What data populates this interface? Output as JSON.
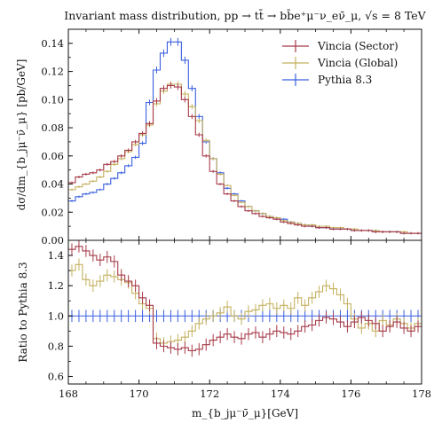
{
  "chart_data": [
    {
      "type": "line",
      "title": "Invariant mass distribution, pp → tt̄ → bb̄e⁺μ⁻ν_eν̄_μ, √s = 8 TeV",
      "xlabel": "",
      "ylabel": "dσ/dm_{b_jμ⁻ν̄_μ}  [pb/GeV]",
      "xlim": [
        168,
        178
      ],
      "ylim": [
        0,
        0.15
      ],
      "xticks": [
        "168",
        "170",
        "172",
        "174",
        "176",
        "178"
      ],
      "yticks": [
        "0.00",
        "0.02",
        "0.04",
        "0.06",
        "0.08",
        "0.10",
        "0.12",
        "0.14"
      ],
      "grid": false,
      "legend_position": "top-right",
      "bin_edges": [
        168.0,
        168.2,
        168.4,
        168.6,
        168.8,
        169.0,
        169.2,
        169.4,
        169.6,
        169.8,
        170.0,
        170.2,
        170.4,
        170.6,
        170.8,
        171.0,
        171.2,
        171.4,
        171.6,
        171.8,
        172.0,
        172.2,
        172.4,
        172.6,
        172.8,
        173.0,
        173.2,
        173.4,
        173.6,
        173.8,
        174.0,
        174.2,
        174.4,
        174.6,
        174.8,
        175.0,
        175.2,
        175.4,
        175.6,
        175.8,
        176.0,
        176.2,
        176.4,
        176.6,
        176.8,
        177.0,
        177.2,
        177.4,
        177.6,
        177.8,
        178.0
      ],
      "series": [
        {
          "name": "Vincia (Sector)",
          "color": "#a63a48",
          "values": [
            0.041,
            0.045,
            0.047,
            0.048,
            0.05,
            0.054,
            0.056,
            0.06,
            0.064,
            0.07,
            0.076,
            0.083,
            0.099,
            0.108,
            0.11,
            0.109,
            0.1,
            0.088,
            0.075,
            0.06,
            0.049,
            0.04,
            0.033,
            0.028,
            0.024,
            0.021,
            0.019,
            0.017,
            0.016,
            0.015,
            0.013,
            0.012,
            0.011,
            0.01,
            0.01,
            0.009,
            0.009,
            0.008,
            0.008,
            0.008,
            0.007,
            0.007,
            0.007,
            0.006,
            0.006,
            0.006,
            0.006,
            0.005,
            0.005,
            0.005
          ]
        },
        {
          "name": "Vincia (Global)",
          "color": "#c4b05e",
          "values": [
            0.036,
            0.038,
            0.04,
            0.042,
            0.045,
            0.049,
            0.054,
            0.058,
            0.063,
            0.068,
            0.075,
            0.082,
            0.097,
            0.106,
            0.111,
            0.111,
            0.104,
            0.095,
            0.085,
            0.071,
            0.058,
            0.047,
            0.039,
            0.032,
            0.027,
            0.024,
            0.021,
            0.019,
            0.017,
            0.016,
            0.014,
            0.013,
            0.012,
            0.011,
            0.011,
            0.01,
            0.01,
            0.009,
            0.009,
            0.008,
            0.008,
            0.007,
            0.007,
            0.007,
            0.006,
            0.006,
            0.006,
            0.006,
            0.005,
            0.005
          ]
        },
        {
          "name": "Pythia 8.3",
          "color": "#3b5fe0",
          "values": [
            0.028,
            0.031,
            0.033,
            0.034,
            0.036,
            0.04,
            0.044,
            0.048,
            0.053,
            0.059,
            0.069,
            0.098,
            0.121,
            0.133,
            0.141,
            0.141,
            0.128,
            0.108,
            0.088,
            0.07,
            0.058,
            0.048,
            0.037,
            0.033,
            0.028,
            0.024,
            0.021,
            0.019,
            0.017,
            0.016,
            0.015,
            0.013,
            0.012,
            0.011,
            0.01,
            0.009,
            0.009,
            0.008,
            0.008,
            0.008,
            0.007,
            0.007,
            0.007,
            0.006,
            0.006,
            0.006,
            0.006,
            0.005,
            0.005,
            0.005
          ]
        }
      ]
    },
    {
      "type": "line",
      "title": "",
      "xlabel": "m_{b_jμ⁻ν̄_μ}[GeV]",
      "ylabel": "Ratio to Pythia 8.3",
      "xlim": [
        168,
        178
      ],
      "ylim": [
        0.55,
        1.5
      ],
      "xticks": [
        "168",
        "170",
        "172",
        "174",
        "176",
        "178"
      ],
      "yticks": [
        "0.6",
        "0.8",
        "1.0",
        "1.2",
        "1.4"
      ],
      "grid": false,
      "bin_edges": [
        168.0,
        168.2,
        168.4,
        168.6,
        168.8,
        169.0,
        169.2,
        169.4,
        169.6,
        169.8,
        170.0,
        170.2,
        170.4,
        170.6,
        170.8,
        171.0,
        171.2,
        171.4,
        171.6,
        171.8,
        172.0,
        172.2,
        172.4,
        172.6,
        172.8,
        173.0,
        173.2,
        173.4,
        173.6,
        173.8,
        174.0,
        174.2,
        174.4,
        174.6,
        174.8,
        175.0,
        175.2,
        175.4,
        175.6,
        175.8,
        176.0,
        176.2,
        176.4,
        176.6,
        176.8,
        177.0,
        177.2,
        177.4,
        177.6,
        177.8,
        178.0
      ],
      "series": [
        {
          "name": "Vincia (Sector)",
          "color": "#a63a48",
          "values": [
            1.44,
            1.46,
            1.43,
            1.4,
            1.37,
            1.39,
            1.36,
            1.27,
            1.23,
            1.2,
            1.12,
            1.07,
            0.82,
            0.8,
            0.79,
            0.78,
            0.79,
            0.77,
            0.78,
            0.81,
            0.84,
            0.86,
            0.88,
            0.86,
            0.85,
            0.88,
            0.89,
            0.86,
            0.88,
            0.9,
            0.89,
            0.88,
            0.9,
            0.93,
            0.94,
            0.97,
            0.99,
            0.98,
            0.96,
            0.93,
            0.96,
            0.99,
            0.97,
            0.95,
            0.9,
            0.93,
            0.96,
            0.92,
            0.9,
            0.93
          ]
        },
        {
          "name": "Vincia (Global)",
          "color": "#c4b05e",
          "values": [
            1.3,
            1.34,
            1.24,
            1.2,
            1.23,
            1.27,
            1.26,
            1.24,
            1.22,
            1.15,
            1.08,
            1.05,
            0.85,
            0.82,
            0.83,
            0.84,
            0.86,
            0.9,
            0.95,
            0.98,
            1.0,
            1.02,
            1.06,
            1.0,
            0.98,
            1.03,
            1.04,
            1.07,
            1.08,
            1.05,
            1.07,
            1.05,
            1.12,
            1.07,
            1.12,
            1.16,
            1.2,
            1.18,
            1.14,
            1.08,
            0.98,
            0.92,
            0.95,
            0.9,
            0.97,
            0.94,
            0.98,
            0.95,
            0.92,
            0.95
          ]
        },
        {
          "name": "Pythia 8.3",
          "color": "#3b5fe0",
          "values": [
            1.0,
            1.0,
            1.0,
            1.0,
            1.0,
            1.0,
            1.0,
            1.0,
            1.0,
            1.0,
            1.0,
            1.0,
            1.0,
            1.0,
            1.0,
            1.0,
            1.0,
            1.0,
            1.0,
            1.0,
            1.0,
            1.0,
            1.0,
            1.0,
            1.0,
            1.0,
            1.0,
            1.0,
            1.0,
            1.0,
            1.0,
            1.0,
            1.0,
            1.0,
            1.0,
            1.0,
            1.0,
            1.0,
            1.0,
            1.0,
            1.0,
            1.0,
            1.0,
            1.0,
            1.0,
            1.0,
            1.0,
            1.0,
            1.0,
            1.0
          ]
        }
      ]
    }
  ]
}
